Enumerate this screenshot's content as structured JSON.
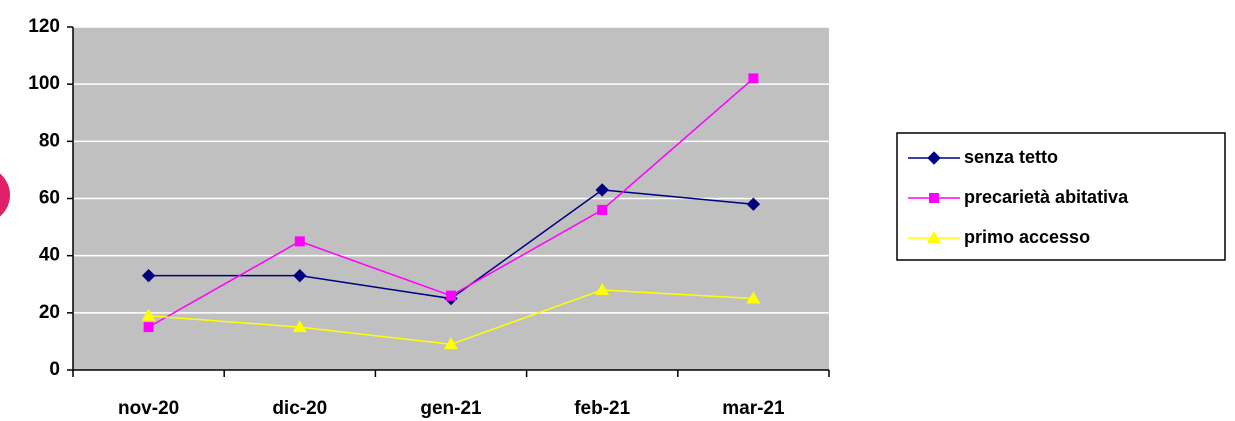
{
  "chart_data": {
    "type": "line",
    "categories": [
      "nov-20",
      "dic-20",
      "gen-21",
      "feb-21",
      "mar-21"
    ],
    "series": [
      {
        "name": "senza tetto",
        "color": "#000080",
        "marker": "diamond",
        "values": [
          33,
          33,
          25,
          63,
          58
        ]
      },
      {
        "name": "precarietà abitativa",
        "color": "#ff00ff",
        "marker": "square",
        "values": [
          15,
          45,
          26,
          56,
          102
        ]
      },
      {
        "name": "primo accesso",
        "color": "#ffff00",
        "marker": "triangle",
        "values": [
          19,
          15,
          9,
          28,
          25
        ]
      }
    ],
    "ylim": [
      0,
      120
    ],
    "yticks": [
      0,
      20,
      40,
      60,
      80,
      100,
      120
    ],
    "grid": true,
    "legend": "right"
  }
}
